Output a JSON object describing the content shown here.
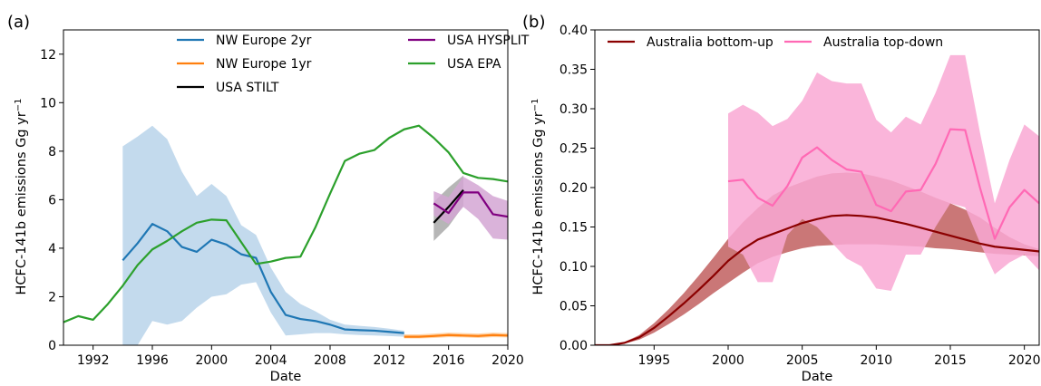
{
  "chart_data": [
    {
      "type": "line",
      "panel_label": "(a)",
      "xlabel": "Date",
      "ylabel": "HCFC-141b emissions Gg yr",
      "ylabel_sup": "−1",
      "xlim": [
        1990,
        2020
      ],
      "ylim": [
        0,
        13
      ],
      "xticks": [
        1992,
        1996,
        2000,
        2004,
        2008,
        2012,
        2016,
        2020
      ],
      "yticks": [
        0,
        2,
        4,
        6,
        8,
        10,
        12
      ],
      "legend_position": "upper-center-right",
      "series": [
        {
          "name": "NW Europe 2yr",
          "color": "#1f77b4",
          "x": [
            1994,
            1995,
            1996,
            1997,
            1998,
            1999,
            2000,
            2001,
            2002,
            2003,
            2004,
            2005,
            2006,
            2007,
            2008,
            2009,
            2010,
            2011,
            2012,
            2013
          ],
          "y": [
            3.5,
            4.2,
            5.0,
            4.7,
            4.05,
            3.85,
            4.35,
            4.15,
            3.75,
            3.6,
            2.2,
            1.25,
            1.08,
            1.0,
            0.85,
            0.65,
            0.62,
            0.6,
            0.55,
            0.5
          ],
          "band_lower": [
            0.0,
            0.0,
            1.0,
            0.85,
            1.0,
            1.55,
            2.0,
            2.1,
            2.5,
            2.6,
            1.35,
            0.4,
            0.45,
            0.5,
            0.5,
            0.45,
            0.42,
            0.4,
            0.38,
            0.35
          ],
          "band_upper": [
            8.2,
            8.6,
            9.05,
            8.5,
            7.15,
            6.15,
            6.65,
            6.15,
            4.95,
            4.55,
            3.2,
            2.2,
            1.7,
            1.4,
            1.05,
            0.85,
            0.8,
            0.75,
            0.68,
            0.6
          ],
          "band_color": "#b9d3ea"
        },
        {
          "name": "NW Europe 1yr",
          "color": "#ff7f0e",
          "x": [
            2013,
            2014,
            2015,
            2016,
            2017,
            2018,
            2019,
            2020
          ],
          "y": [
            0.35,
            0.35,
            0.38,
            0.42,
            0.4,
            0.38,
            0.42,
            0.4
          ],
          "band_lower": [
            0.28,
            0.28,
            0.3,
            0.33,
            0.32,
            0.3,
            0.33,
            0.32
          ],
          "band_upper": [
            0.45,
            0.45,
            0.48,
            0.52,
            0.5,
            0.48,
            0.52,
            0.5
          ],
          "band_color": "#ffcc99"
        },
        {
          "name": "USA STILT",
          "color": "#000000",
          "x": [
            2015,
            2016,
            2017
          ],
          "y": [
            5.05,
            5.7,
            6.4
          ],
          "band_lower": [
            4.3,
            4.9,
            5.75
          ],
          "band_upper": [
            5.9,
            6.5,
            7.0
          ],
          "band_color": "#a9a9a9"
        },
        {
          "name": "USA HYSPLIT",
          "color": "#800080",
          "x": [
            2015,
            2016,
            2017,
            2018,
            2019,
            2020
          ],
          "y": [
            5.85,
            5.45,
            6.3,
            6.3,
            5.4,
            5.3
          ],
          "band_lower": [
            5.35,
            5.0,
            5.7,
            5.2,
            4.4,
            4.35
          ],
          "band_upper": [
            6.35,
            6.1,
            6.95,
            6.6,
            6.15,
            5.95
          ],
          "band_color": "#d4a6d4"
        },
        {
          "name": "USA EPA",
          "color": "#2ca02c",
          "x": [
            1990,
            1991,
            1992,
            1993,
            1994,
            1995,
            1996,
            1997,
            1998,
            1999,
            2000,
            2001,
            2002,
            2003,
            2004,
            2005,
            2006,
            2007,
            2008,
            2009,
            2010,
            2011,
            2012,
            2013,
            2014,
            2015,
            2016,
            2017,
            2018,
            2019,
            2020
          ],
          "y": [
            0.95,
            1.2,
            1.05,
            1.7,
            2.45,
            3.3,
            3.95,
            4.3,
            4.7,
            5.05,
            5.18,
            5.15,
            4.25,
            3.35,
            3.45,
            3.6,
            3.65,
            4.85,
            6.25,
            7.6,
            7.9,
            8.05,
            8.55,
            8.9,
            9.05,
            8.55,
            7.95,
            7.1,
            6.9,
            6.85,
            6.75
          ]
        }
      ]
    },
    {
      "type": "line",
      "panel_label": "(b)",
      "xlabel": "Date",
      "ylabel": "HCFC-141b emissions Gg yr",
      "ylabel_sup": "−1",
      "xlim": [
        1991,
        2021
      ],
      "ylim": [
        0,
        0.4
      ],
      "xticks": [
        1995,
        2000,
        2005,
        2010,
        2015,
        2020
      ],
      "yticks": [
        0.0,
        0.05,
        0.1,
        0.15,
        0.2,
        0.25,
        0.3,
        0.35,
        0.4
      ],
      "ytick_labels": [
        "0.00",
        "0.05",
        "0.10",
        "0.15",
        "0.20",
        "0.25",
        "0.30",
        "0.35",
        "0.40"
      ],
      "legend_position": "upper",
      "series": [
        {
          "name": "Australia bottom-up",
          "color": "#8b0000",
          "x": [
            1991,
            1992,
            1993,
            1994,
            1995,
            1996,
            1997,
            1998,
            1999,
            2000,
            2001,
            2002,
            2003,
            2004,
            2005,
            2006,
            2007,
            2008,
            2009,
            2010,
            2011,
            2012,
            2013,
            2014,
            2015,
            2016,
            2017,
            2018,
            2019,
            2020,
            2021
          ],
          "y": [
            0.0,
            0.0,
            0.003,
            0.01,
            0.022,
            0.037,
            0.053,
            0.07,
            0.088,
            0.107,
            0.122,
            0.134,
            0.141,
            0.148,
            0.155,
            0.16,
            0.164,
            0.165,
            0.164,
            0.162,
            0.158,
            0.154,
            0.149,
            0.144,
            0.139,
            0.134,
            0.129,
            0.125,
            0.123,
            0.121,
            0.119
          ],
          "band_lower": [
            0.0,
            0.0,
            0.002,
            0.007,
            0.016,
            0.027,
            0.039,
            0.052,
            0.066,
            0.079,
            0.092,
            0.104,
            0.112,
            0.118,
            0.123,
            0.126,
            0.127,
            0.128,
            0.128,
            0.128,
            0.127,
            0.126,
            0.125,
            0.123,
            0.122,
            0.12,
            0.118,
            0.116,
            0.115,
            0.114,
            0.113
          ],
          "band_upper": [
            0.0,
            0.0,
            0.004,
            0.013,
            0.028,
            0.046,
            0.066,
            0.088,
            0.111,
            0.135,
            0.156,
            0.174,
            0.19,
            0.2,
            0.207,
            0.214,
            0.218,
            0.219,
            0.218,
            0.214,
            0.209,
            0.202,
            0.195,
            0.187,
            0.18,
            0.172,
            0.162,
            0.149,
            0.137,
            0.128,
            0.122
          ],
          "band_color": "#b84a4a"
        },
        {
          "name": "Australia top-down",
          "color": "#ff69b4",
          "x": [
            2000,
            2001,
            2002,
            2003,
            2004,
            2005,
            2006,
            2007,
            2008,
            2009,
            2010,
            2011,
            2012,
            2013,
            2014,
            2015,
            2016,
            2017,
            2018,
            2019,
            2020,
            2021
          ],
          "y": [
            0.208,
            0.21,
            0.187,
            0.177,
            0.202,
            0.238,
            0.251,
            0.235,
            0.223,
            0.22,
            0.178,
            0.17,
            0.195,
            0.197,
            0.23,
            0.274,
            0.273,
            0.2,
            0.135,
            0.175,
            0.197,
            0.18
          ],
          "band_lower": [
            0.125,
            0.115,
            0.08,
            0.08,
            0.14,
            0.16,
            0.15,
            0.13,
            0.11,
            0.1,
            0.072,
            0.069,
            0.115,
            0.115,
            0.15,
            0.18,
            0.175,
            0.13,
            0.09,
            0.105,
            0.115,
            0.095
          ],
          "band_upper": [
            0.294,
            0.305,
            0.295,
            0.278,
            0.287,
            0.31,
            0.346,
            0.335,
            0.332,
            0.332,
            0.286,
            0.27,
            0.29,
            0.28,
            0.32,
            0.368,
            0.368,
            0.27,
            0.18,
            0.235,
            0.28,
            0.265
          ],
          "band_color": "#f9a8d4"
        }
      ]
    }
  ]
}
